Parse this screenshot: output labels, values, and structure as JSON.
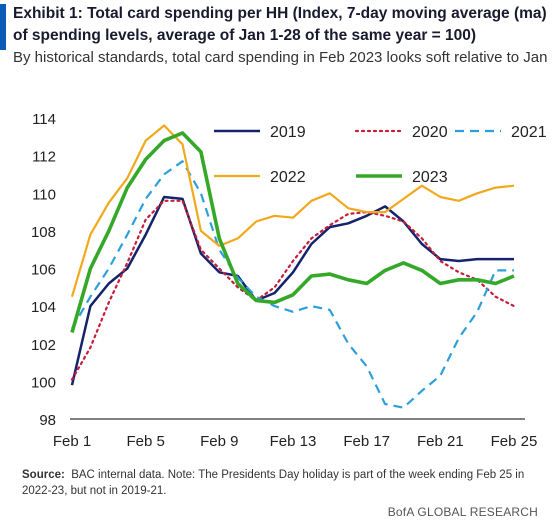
{
  "header": {
    "title": "Exhibit 1: Total card spending per HH (Index, 7-day moving average (ma) of spending levels, average of Jan 1-28 of the same year = 100)",
    "subtitle": "By historical standards, total card spending in Feb 2023 looks soft relative to Jan",
    "accent_color": "#0b5ab8"
  },
  "source": {
    "label": "Source:",
    "text": "BAC internal data. Note: The Presidents Day holiday is part of the week ending Feb 25 in 2022-23, but not in 2019-21."
  },
  "footer": {
    "brand": "BofA GLOBAL RESEARCH"
  },
  "chart_data": {
    "type": "line",
    "title": "",
    "xlabel": "",
    "ylabel": "",
    "x": [
      1,
      2,
      3,
      4,
      5,
      6,
      7,
      8,
      9,
      10,
      11,
      12,
      13,
      14,
      15,
      16,
      17,
      18,
      19,
      20,
      21,
      22,
      23,
      24,
      25
    ],
    "x_ticks": [
      "Feb 1",
      "Feb 5",
      "Feb 9",
      "Feb 13",
      "Feb 17",
      "Feb 21",
      "Feb 25"
    ],
    "x_tick_values": [
      1,
      5,
      9,
      13,
      17,
      21,
      25
    ],
    "ylim": [
      98,
      114
    ],
    "y_ticks": [
      98,
      100,
      102,
      104,
      106,
      108,
      110,
      112,
      114
    ],
    "grid": false,
    "legend_position": "top-right",
    "series": [
      {
        "name": "2019",
        "color": "#14236b",
        "dash": "solid",
        "width": 2.5,
        "values": [
          99.8,
          104.0,
          105.2,
          106.0,
          107.8,
          109.8,
          109.7,
          106.8,
          105.8,
          105.6,
          104.3,
          104.7,
          105.8,
          107.3,
          108.2,
          108.4,
          108.8,
          109.3,
          108.5,
          107.3,
          106.5,
          106.4,
          106.5,
          106.5,
          106.5
        ]
      },
      {
        "name": "2020",
        "color": "#c41e3a",
        "dash": "dotted",
        "width": 2.2,
        "values": [
          100.1,
          101.8,
          104.2,
          106.3,
          108.6,
          109.6,
          109.6,
          107.0,
          106.0,
          105.0,
          104.3,
          105.0,
          106.4,
          107.6,
          108.3,
          108.9,
          109.0,
          108.8,
          108.5,
          107.6,
          106.4,
          105.8,
          105.4,
          104.5,
          104.0
        ]
      },
      {
        "name": "2021",
        "color": "#2e9fdb",
        "dash": "dashed",
        "width": 2.2,
        "values": [
          102.8,
          104.5,
          106.0,
          107.8,
          109.7,
          111.0,
          111.7,
          110.0,
          107.0,
          105.5,
          104.5,
          104.0,
          103.7,
          104.0,
          103.8,
          102.0,
          100.8,
          98.8,
          98.6,
          99.5,
          100.3,
          102.3,
          103.7,
          105.9,
          105.9
        ]
      },
      {
        "name": "2022",
        "color": "#f2a81d",
        "dash": "solid",
        "width": 2.2,
        "values": [
          104.5,
          107.8,
          109.5,
          110.8,
          112.8,
          113.6,
          112.6,
          108.0,
          107.2,
          107.6,
          108.5,
          108.8,
          108.7,
          109.6,
          110.0,
          109.2,
          109.0,
          109.0,
          109.7,
          110.4,
          109.8,
          109.6,
          110.0,
          110.3,
          110.4
        ]
      },
      {
        "name": "2023",
        "color": "#35a829",
        "dash": "solid",
        "width": 3.6,
        "values": [
          102.6,
          106.0,
          108.0,
          110.3,
          111.8,
          112.8,
          113.2,
          112.2,
          107.6,
          105.2,
          104.3,
          104.2,
          104.6,
          105.6,
          105.7,
          105.4,
          105.2,
          105.9,
          106.3,
          105.9,
          105.2,
          105.4,
          105.4,
          105.2,
          105.6
        ]
      }
    ]
  }
}
